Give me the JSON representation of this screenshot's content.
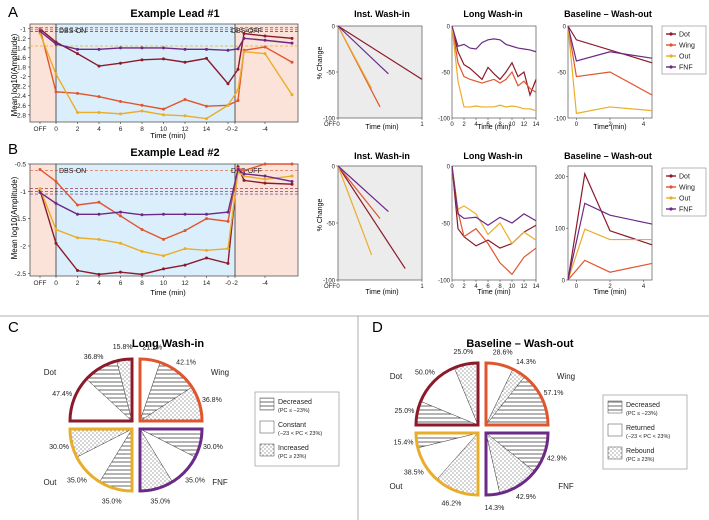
{
  "colors": {
    "dot": "#8b1a2b",
    "wing": "#e0552e",
    "out": "#e9ad2a",
    "fnf": "#6a2a86",
    "on_bg": "#dbeefb",
    "off_bg": "#fbe3da",
    "base_bg": "#ececec",
    "frame": "#555555"
  },
  "panel_labels": {
    "a": "A",
    "b": "B",
    "c": "C",
    "d": "D"
  },
  "legend": {
    "dot": "Dot",
    "wing": "Wing",
    "out": "Out",
    "fnf": "FNF"
  },
  "chart_data": [
    {
      "id": "A-main",
      "type": "line",
      "title": "Example Lead #1",
      "ylabel": "Mean log10(Amplitude)",
      "xlabel": "Time (min)",
      "ylim": [
        -2.95,
        -0.9
      ],
      "yticks": [
        "-1",
        "-1.2",
        "-1.4",
        "-1.6",
        "-1.8",
        "-2",
        "-2.2",
        "-2.4",
        "-2.6",
        "-2.8"
      ],
      "xticks": [
        "OFF",
        "0",
        "2",
        "4",
        "6",
        "8",
        "10",
        "12",
        "14",
        "-0",
        "-2",
        "-4"
      ],
      "annotations": [
        "DBS-ON",
        "DBS-OFF"
      ],
      "series": [
        {
          "name": "Dot",
          "values": [
            -1.0,
            -1.28,
            -1.52,
            -1.78,
            -1.72,
            -1.65,
            -1.63,
            -1.7,
            -1.62,
            -2.15,
            -1.85,
            -1.1,
            -1.15,
            -1.2
          ]
        },
        {
          "name": "Wing",
          "values": [
            -1.0,
            -2.32,
            -2.35,
            -2.42,
            -2.52,
            -2.6,
            -2.68,
            -2.48,
            -2.62,
            -2.6,
            -2.5,
            -1.45,
            -1.38,
            -1.7
          ]
        },
        {
          "name": "Out",
          "values": [
            -1.1,
            -1.95,
            -2.75,
            -2.75,
            -2.78,
            -2.72,
            -2.8,
            -2.82,
            -2.88,
            -2.6,
            -2.28,
            -1.48,
            -1.52,
            -2.38
          ]
        },
        {
          "name": "FNF",
          "values": [
            -1.05,
            -1.32,
            -1.43,
            -1.43,
            -1.4,
            -1.4,
            -1.4,
            -1.43,
            -1.43,
            -1.45,
            -1.42,
            -1.2,
            -1.24,
            -1.3
          ]
        }
      ]
    },
    {
      "id": "B-main",
      "type": "line",
      "title": "Example Lead #2",
      "ylabel": "Mean log10(Amplitude)",
      "xlabel": "Time (min)",
      "ylim": [
        -2.55,
        -0.5
      ],
      "yticks": [
        "-0.5",
        "-1",
        "-1.5",
        "-2",
        "-2.5"
      ],
      "xticks": [
        "OFF",
        "0",
        "2",
        "4",
        "6",
        "8",
        "10",
        "12",
        "14",
        "-0",
        "-2",
        "-4"
      ],
      "annotations": [
        "DBS-ON",
        "DBS-OFF"
      ],
      "series": [
        {
          "name": "Dot",
          "values": [
            -0.98,
            -1.95,
            -2.45,
            -2.52,
            -2.48,
            -2.52,
            -2.42,
            -2.35,
            -2.22,
            -2.32,
            -0.55,
            -0.8,
            -0.85,
            -0.87
          ]
        },
        {
          "name": "Wing",
          "values": [
            -0.6,
            -0.82,
            -1.25,
            -1.2,
            -1.45,
            -1.7,
            -1.88,
            -1.72,
            -1.5,
            -1.55,
            -0.58,
            -0.62,
            -0.5,
            -0.5
          ]
        },
        {
          "name": "Out",
          "values": [
            -0.95,
            -1.7,
            -1.85,
            -1.88,
            -1.95,
            -2.1,
            -2.18,
            -2.05,
            -2.08,
            -2.05,
            -0.65,
            -0.72,
            -0.78,
            -0.72
          ]
        },
        {
          "name": "FNF",
          "values": [
            -1.02,
            -1.22,
            -1.42,
            -1.42,
            -1.38,
            -1.43,
            -1.42,
            -1.42,
            -1.42,
            -1.38,
            -0.6,
            -0.68,
            -0.72,
            -0.82
          ]
        }
      ]
    },
    {
      "id": "A-inst",
      "type": "line",
      "title": "Inst. Wash-in",
      "ylabel": "% Change",
      "xlabel": "Time (min)",
      "ylim": [
        -100,
        0
      ],
      "xlim": [
        0,
        1
      ],
      "yticks": [
        "0",
        "-50",
        "-100"
      ],
      "xticks": [
        "OFF",
        "0",
        "1"
      ],
      "series": [
        {
          "name": "Dot",
          "x": [
            0,
            1
          ],
          "values": [
            0,
            -58
          ]
        },
        {
          "name": "Wing",
          "x": [
            0,
            0.5
          ],
          "values": [
            0,
            -88
          ]
        },
        {
          "name": "Out",
          "x": [
            0,
            0.4
          ],
          "values": [
            0,
            -68
          ]
        },
        {
          "name": "FNF",
          "x": [
            0,
            0.6
          ],
          "values": [
            0,
            -52
          ]
        }
      ]
    },
    {
      "id": "A-long",
      "type": "line",
      "title": "Long Wash-in",
      "ylabel": "",
      "xlabel": "Time (min)",
      "ylim": [
        -100,
        0
      ],
      "xlim": [
        0,
        14
      ],
      "yticks": [
        "0",
        "-50",
        "-100"
      ],
      "xticks": [
        "0",
        "2",
        "4",
        "6",
        "8",
        "10",
        "12",
        "14"
      ],
      "series": [
        {
          "name": "Dot",
          "x": [
            0,
            1,
            2,
            3,
            4,
            5,
            6,
            7,
            8,
            9,
            10,
            11,
            12,
            13,
            14
          ],
          "values": [
            0,
            -28,
            -42,
            -46,
            -52,
            -58,
            -45,
            -52,
            -58,
            -50,
            -40,
            -55,
            -50,
            -75,
            -58
          ]
        },
        {
          "name": "Wing",
          "x": [
            0,
            1,
            2,
            3,
            4,
            5,
            6,
            7,
            8,
            9,
            10,
            11,
            12,
            13,
            14
          ],
          "values": [
            0,
            -40,
            -55,
            -58,
            -60,
            -62,
            -60,
            -58,
            -62,
            -58,
            -50,
            -65,
            -60,
            -68,
            -72
          ]
        },
        {
          "name": "Out",
          "x": [
            0,
            1,
            2,
            3,
            4,
            5,
            6,
            7,
            8,
            9,
            10,
            11,
            12,
            13,
            14
          ],
          "values": [
            0,
            -60,
            -88,
            -88,
            -87,
            -88,
            -88,
            -88,
            -86,
            -88,
            -87,
            -88,
            -90,
            -90,
            -92
          ]
        },
        {
          "name": "FNF",
          "x": [
            0,
            1,
            2,
            3,
            4,
            5,
            6,
            7,
            8,
            9,
            10,
            11,
            12,
            13,
            14
          ],
          "values": [
            0,
            -22,
            -20,
            -24,
            -25,
            -18,
            -15,
            -14,
            -15,
            -20,
            -22,
            -24,
            -25,
            -26,
            -28
          ]
        }
      ]
    },
    {
      "id": "A-base",
      "type": "line",
      "title": "Baseline – Wash-out",
      "ylabel": "",
      "xlabel": "Time (min)",
      "ylim": [
        -100,
        0
      ],
      "xlim": [
        -0.5,
        4.5
      ],
      "yticks": [
        "0",
        "-50",
        "-100"
      ],
      "xticks": [
        "0",
        "2",
        "4"
      ],
      "series": [
        {
          "name": "Dot",
          "x": [
            -0.5,
            0,
            4.5
          ],
          "values": [
            0,
            -15,
            -40
          ]
        },
        {
          "name": "Wing",
          "x": [
            -0.5,
            0,
            2,
            4.5
          ],
          "values": [
            0,
            -55,
            -50,
            -75
          ]
        },
        {
          "name": "Out",
          "x": [
            -0.5,
            0,
            2,
            4.5
          ],
          "values": [
            0,
            -95,
            -88,
            -92
          ]
        },
        {
          "name": "FNF",
          "x": [
            -0.5,
            0,
            2,
            4.5
          ],
          "values": [
            0,
            -38,
            -28,
            -35
          ]
        }
      ]
    },
    {
      "id": "B-inst",
      "type": "line",
      "title": "Inst. Wash-in",
      "ylabel": "% Change",
      "xlabel": "Time (min)",
      "ylim": [
        -100,
        0
      ],
      "xlim": [
        0,
        1
      ],
      "yticks": [
        "0",
        "-50",
        "-100"
      ],
      "xticks": [
        "OFF",
        "0",
        "1"
      ],
      "series": [
        {
          "name": "Dot",
          "x": [
            0,
            0.8
          ],
          "values": [
            0,
            -90
          ]
        },
        {
          "name": "Wing",
          "x": [
            0,
            0.5
          ],
          "values": [
            0,
            -46
          ]
        },
        {
          "name": "Out",
          "x": [
            0,
            0.4
          ],
          "values": [
            0,
            -78
          ]
        },
        {
          "name": "FNF",
          "x": [
            0,
            0.6
          ],
          "values": [
            0,
            -40
          ]
        }
      ]
    },
    {
      "id": "B-long",
      "type": "line",
      "title": "Long Wash-in",
      "ylabel": "",
      "xlabel": "Time (min)",
      "ylim": [
        -100,
        0
      ],
      "xlim": [
        0,
        14
      ],
      "yticks": [
        "0",
        "-50",
        "-100"
      ],
      "xticks": [
        "0",
        "2",
        "4",
        "6",
        "8",
        "10",
        "12",
        "14"
      ],
      "series": [
        {
          "name": "Dot",
          "x": [
            0,
            1,
            2,
            4,
            6,
            8,
            10,
            12,
            14
          ],
          "values": [
            0,
            -55,
            -62,
            -70,
            -65,
            -72,
            -68,
            -58,
            -52
          ]
        },
        {
          "name": "Wing",
          "x": [
            0,
            1,
            2,
            4,
            6,
            8,
            10,
            12,
            14
          ],
          "values": [
            0,
            -40,
            -62,
            -55,
            -68,
            -85,
            -95,
            -80,
            -72
          ]
        },
        {
          "name": "Out",
          "x": [
            0,
            1,
            2,
            4,
            6,
            8,
            10,
            12,
            14
          ],
          "values": [
            0,
            -38,
            -35,
            -42,
            -60,
            -50,
            -68,
            -58,
            -65
          ]
        },
        {
          "name": "FNF",
          "x": [
            0,
            1,
            2,
            4,
            6,
            8,
            10,
            12,
            14
          ],
          "values": [
            0,
            -42,
            -46,
            -45,
            -52,
            -45,
            -50,
            -42,
            -48
          ]
        }
      ]
    },
    {
      "id": "B-base",
      "type": "line",
      "title": "Baseline – Wash-out",
      "ylabel": "",
      "xlabel": "Time (min)",
      "ylim": [
        0,
        220
      ],
      "xlim": [
        -0.5,
        4.5
      ],
      "yticks": [
        "200",
        "100",
        "0"
      ],
      "xticks": [
        "0",
        "2",
        "4"
      ],
      "series": [
        {
          "name": "Dot",
          "x": [
            -0.5,
            0.5,
            2,
            4.5
          ],
          "values": [
            0,
            205,
            95,
            68
          ]
        },
        {
          "name": "Wing",
          "x": [
            -0.5,
            0.5,
            2,
            4.5
          ],
          "values": [
            0,
            38,
            15,
            32
          ]
        },
        {
          "name": "Out",
          "x": [
            -0.5,
            0.5,
            2,
            4.5
          ],
          "values": [
            0,
            98,
            78,
            78
          ]
        },
        {
          "name": "FNF",
          "x": [
            -0.5,
            0.5,
            2,
            4.5
          ],
          "values": [
            0,
            148,
            125,
            108
          ]
        }
      ]
    },
    {
      "id": "C-pie",
      "type": "pie",
      "title": "Long Wash-in",
      "legend": [
        {
          "label": "Decreased",
          "sub": "(PC ≤ −23%)",
          "pattern": "lines"
        },
        {
          "label": "Constant",
          "sub": "(−23 < PC < 23%)",
          "pattern": "plain"
        },
        {
          "label": "Increased",
          "sub": "(PC ≥ 23%)",
          "pattern": "dots"
        }
      ],
      "quadrants": [
        {
          "name": "Dot",
          "color": "#8b1a2b",
          "slices": [
            {
              "c": "plain",
              "v": 47.4
            },
            {
              "c": "lines",
              "v": 36.8
            },
            {
              "c": "dots",
              "v": 15.8
            }
          ],
          "labels": [
            "47.4%",
            "36.8%",
            "15.8%"
          ]
        },
        {
          "name": "Wing",
          "color": "#e0552e",
          "slices": [
            {
              "c": "plain",
              "v": 21.1
            },
            {
              "c": "lines",
              "v": 42.1
            },
            {
              "c": "dots",
              "v": 36.8
            }
          ],
          "labels": [
            "21.1%",
            "42.1%",
            "36.8%"
          ]
        },
        {
          "name": "Out",
          "color": "#e9ad2a",
          "slices": [
            {
              "c": "lines",
              "v": 35.0
            },
            {
              "c": "plain",
              "v": 35.0
            },
            {
              "c": "dots",
              "v": 30.0
            }
          ],
          "labels": [
            "35.0%",
            "35.0%",
            "30.0%"
          ]
        },
        {
          "name": "FNF",
          "color": "#6a2a86",
          "slices": [
            {
              "c": "lines",
              "v": 30.0
            },
            {
              "c": "plain",
              "v": 35.0
            },
            {
              "c": "dots",
              "v": 35.0
            }
          ],
          "labels": [
            "30.0%",
            "35.0%",
            "35.0%"
          ]
        }
      ]
    },
    {
      "id": "D-pie",
      "type": "pie",
      "title": "Baseline – Wash-out",
      "legend": [
        {
          "label": "Decreased",
          "sub": "(PC ≤ −23%)",
          "pattern": "lines"
        },
        {
          "label": "Returned",
          "sub": "(−23 < PC < 23%)",
          "pattern": "plain"
        },
        {
          "label": "Rebound",
          "sub": "(PC ≥ 23%)",
          "pattern": "dots"
        }
      ],
      "quadrants": [
        {
          "name": "Dot",
          "color": "#8b1a2b",
          "slices": [
            {
              "c": "lines",
              "v": 25.0
            },
            {
              "c": "plain",
              "v": 50.0
            },
            {
              "c": "dots",
              "v": 25.0
            }
          ],
          "labels": [
            "25.0%",
            "50.0%",
            "25.0%"
          ]
        },
        {
          "name": "Wing",
          "color": "#e0552e",
          "slices": [
            {
              "c": "plain",
              "v": 28.6
            },
            {
              "c": "dots",
              "v": 14.3
            },
            {
              "c": "lines",
              "v": 57.1
            }
          ],
          "labels": [
            "28.6%",
            "14.3%",
            "57.1%"
          ]
        },
        {
          "name": "Out",
          "color": "#e9ad2a",
          "slices": [
            {
              "c": "dots",
              "v": 46.2
            },
            {
              "c": "plain",
              "v": 38.5
            },
            {
              "c": "lines",
              "v": 15.4
            }
          ],
          "labels": [
            "46.2%",
            "38.5%",
            "15.4%"
          ]
        },
        {
          "name": "FNF",
          "color": "#6a2a86",
          "slices": [
            {
              "c": "lines",
              "v": 42.9
            },
            {
              "c": "dots",
              "v": 42.9
            },
            {
              "c": "plain",
              "v": 14.3
            }
          ],
          "labels": [
            "42.9%",
            "42.9%",
            "14.3%"
          ]
        }
      ]
    }
  ]
}
